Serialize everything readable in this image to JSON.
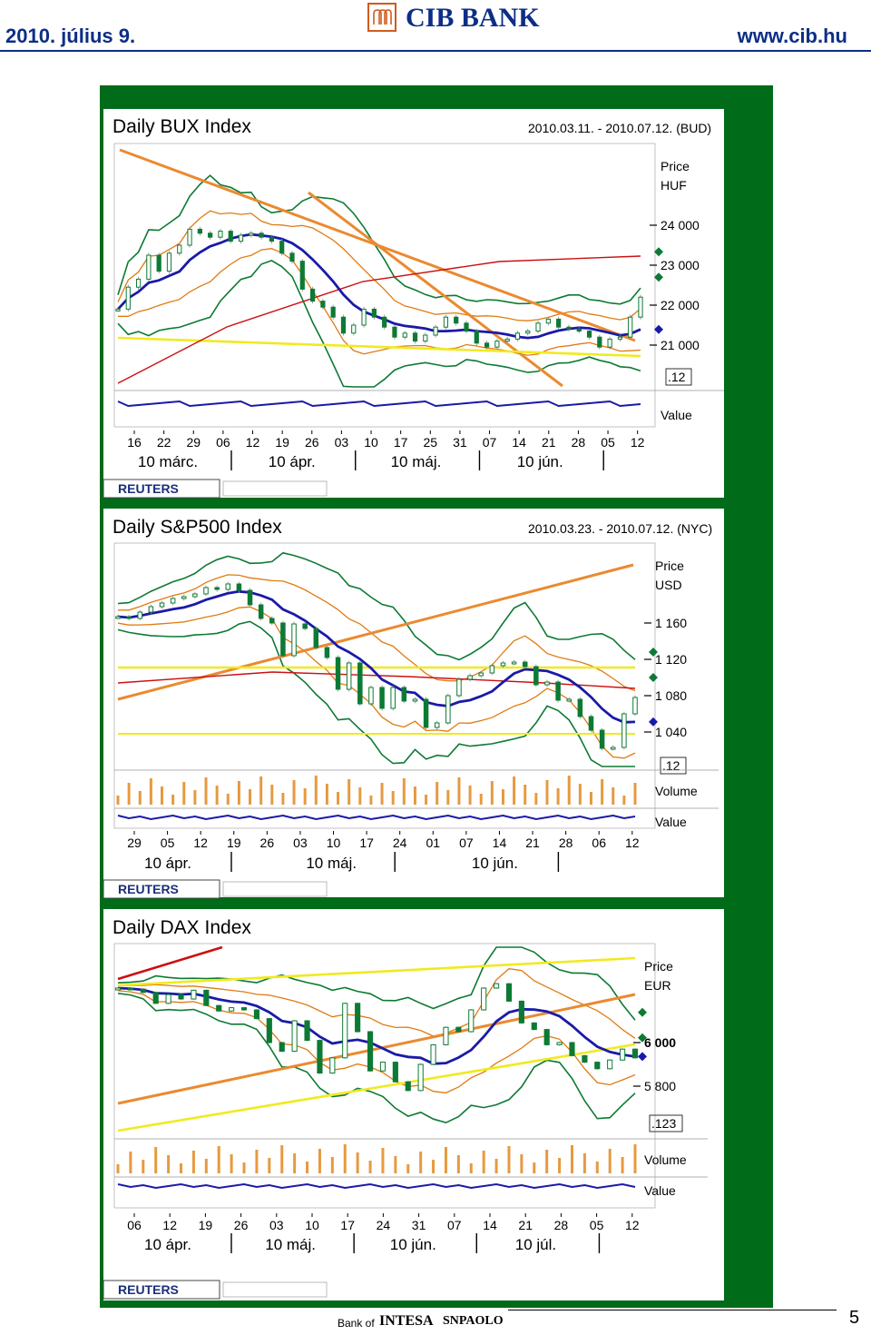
{
  "header": {
    "date": "2010. július 9.",
    "url": "www.cib.hu",
    "logo": "CIB BANK"
  },
  "footer": {
    "bank_of": "Bank of",
    "intesa": "INTESA",
    "sanpaolo": "SNPAOLO",
    "page_number": "5"
  },
  "colors": {
    "frame_green": "#006b19",
    "title_blue": "#0c2e86",
    "bollinger": "#0d7a34",
    "orange_band": "#e07b12",
    "moving_avg": "#1a1aa8",
    "red_line": "#cc1010",
    "yellow_line": "#f0ea20",
    "trend_orange": "#ea8a30",
    "volume_bars": "#e69a40"
  },
  "chart_data": [
    {
      "type": "line",
      "title": "Daily BUX Index",
      "date_range": "2010.03.11. - 2010.07.12. (BUD)",
      "price_label": [
        "Price",
        "HUF"
      ],
      "ylim": [
        20200,
        25200
      ],
      "yticks": [
        "24 000",
        "23 000",
        "22 000",
        "21 000"
      ],
      "last_marker": ".12",
      "lower_panel_label": "Value",
      "x_tick_labels": [
        "16",
        "22",
        "29",
        "06",
        "12",
        "19",
        "26",
        "03",
        "10",
        "17",
        "25",
        "31",
        "07",
        "14",
        "21",
        "28",
        "05",
        "12"
      ],
      "month_labels": [
        "10 márc.",
        "10 ápr.",
        "10 máj.",
        "10 jún."
      ],
      "source": "REUTERS",
      "series": [
        {
          "values": [
            21900,
            22450,
            22650,
            23250,
            22850,
            23300,
            23500,
            23900,
            23800,
            23700,
            23850,
            23600,
            23750,
            23800,
            23700,
            23600,
            23300,
            23100,
            22400,
            22100,
            21950,
            21700,
            21300,
            21500,
            21900,
            21700,
            21450,
            21200,
            21300,
            21100,
            21250,
            21450,
            21700,
            21550,
            21350,
            21050,
            20950,
            21100,
            21150,
            21300,
            21350,
            21550,
            21650,
            21450,
            21400,
            21350,
            21200,
            20950,
            21150,
            21200,
            21700,
            22200
          ]
        }
      ]
    },
    {
      "type": "line",
      "title": "Daily S&P500 Index",
      "date_range": "2010.03.23. - 2010.07.12. (NYC)",
      "price_label": [
        "Price",
        "USD"
      ],
      "ylim": [
        1010,
        1205
      ],
      "yticks": [
        "1 160",
        "1 120",
        "1 080",
        "1 040"
      ],
      "last_marker": ".12",
      "lower_panel_labels": [
        "Volume",
        "Value"
      ],
      "x_tick_labels": [
        "29",
        "05",
        "12",
        "19",
        "26",
        "03",
        "10",
        "17",
        "24",
        "01",
        "07",
        "14",
        "21",
        "28",
        "06",
        "12"
      ],
      "month_labels": [
        "10 ápr.",
        "10 máj.",
        "10 jún."
      ],
      "source": "REUTERS",
      "series": [
        {
          "values": [
            1167,
            1165,
            1172,
            1178,
            1182,
            1187,
            1189,
            1192,
            1199,
            1197,
            1203,
            1196,
            1180,
            1165,
            1160,
            1124,
            1159,
            1154,
            1133,
            1122,
            1087,
            1116,
            1071,
            1089,
            1066,
            1089,
            1074,
            1076,
            1045,
            1050,
            1080,
            1098,
            1102,
            1105,
            1113,
            1116,
            1117,
            1112,
            1092,
            1095,
            1075,
            1076,
            1057,
            1042,
            1022,
            1023,
            1060,
            1078
          ]
        }
      ]
    },
    {
      "type": "line",
      "title": "Daily DAX Index",
      "price_label": [
        "Price",
        "EUR"
      ],
      "ylim": [
        5550,
        6400
      ],
      "yticks": [
        "6 000",
        "5 800"
      ],
      "last_marker": ".123",
      "lower_panel_labels": [
        "Volume",
        "Value"
      ],
      "x_tick_labels": [
        "06",
        "12",
        "19",
        "26",
        "03",
        "10",
        "17",
        "24",
        "31",
        "07",
        "14",
        "21",
        "28",
        "05",
        "12"
      ],
      "month_labels": [
        "10 ápr.",
        "10 máj.",
        "10 jún.",
        "10 júl."
      ],
      "source": "REUTERS",
      "series": [
        {
          "values": [
            6250,
            6245,
            6230,
            6180,
            6220,
            6200,
            6240,
            6170,
            6145,
            6160,
            6150,
            6110,
            6000,
            5960,
            6100,
            6010,
            5860,
            5930,
            6180,
            6050,
            5870,
            5910,
            5820,
            5780,
            5900,
            5990,
            6070,
            6050,
            6150,
            6250,
            6270,
            6190,
            6090,
            6060,
            5990,
            6000,
            5940,
            5910,
            5880,
            5920,
            5970,
            5930
          ]
        }
      ]
    }
  ]
}
